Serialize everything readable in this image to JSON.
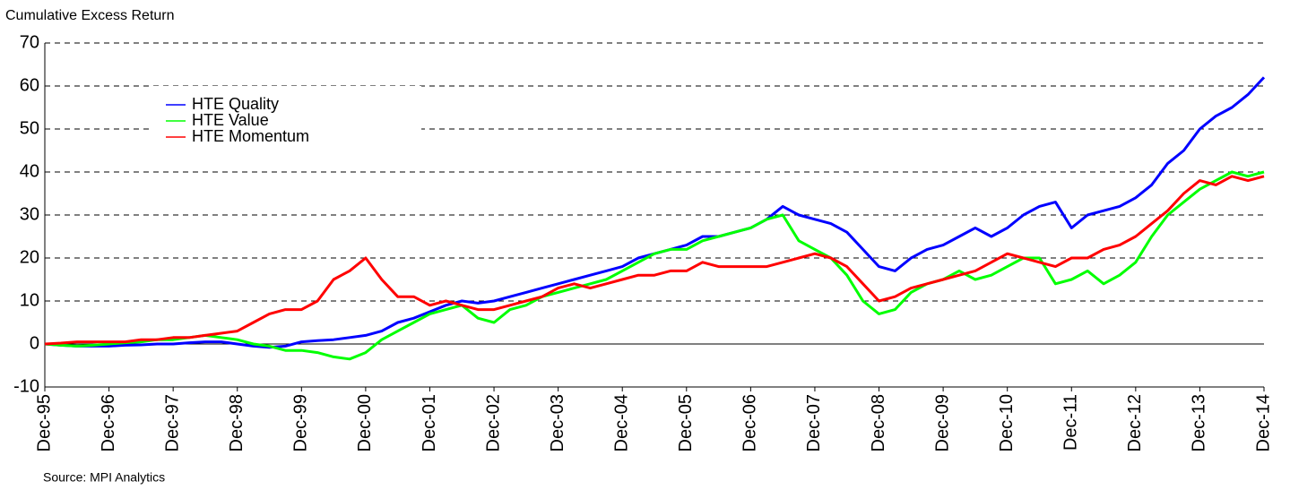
{
  "chart_data": {
    "type": "line",
    "title": "Cumulative Excess Return",
    "source": "Source: MPI Analytics",
    "categories": [
      "Dec-95",
      null,
      null,
      null,
      "Dec-96",
      null,
      null,
      null,
      "Dec-97",
      null,
      null,
      null,
      "Dec-98",
      null,
      null,
      null,
      "Dec-99",
      null,
      null,
      null,
      "Dec-00",
      null,
      null,
      null,
      "Dec-01",
      null,
      null,
      null,
      "Dec-02",
      null,
      null,
      null,
      "Dec-03",
      null,
      null,
      null,
      "Dec-04",
      null,
      null,
      null,
      "Dec-05",
      null,
      null,
      null,
      "Dec-06",
      null,
      null,
      null,
      "Dec-07",
      null,
      null,
      null,
      "Dec-08",
      null,
      null,
      null,
      "Dec-09",
      null,
      null,
      null,
      "Dec-10",
      null,
      null,
      null,
      "Dec-11",
      null,
      null,
      null,
      "Dec-12",
      null,
      null,
      null,
      "Dec-13",
      null,
      null,
      null,
      "Dec-14"
    ],
    "series": [
      {
        "name": "HTE Quality",
        "color": "#0000ff",
        "values": [
          0,
          -0.3,
          -0.5,
          -0.5,
          -0.5,
          -0.3,
          -0.2,
          0,
          0,
          0.3,
          0.5,
          0.5,
          0,
          -0.5,
          -0.8,
          -0.5,
          0.5,
          0.8,
          1,
          1.5,
          2,
          3,
          5,
          6,
          7.5,
          9,
          10,
          9.5,
          10,
          11,
          12,
          13,
          14,
          15,
          16,
          17,
          18,
          20,
          21,
          22,
          23,
          25,
          25,
          26,
          27,
          29,
          32,
          30,
          29,
          28,
          26,
          22,
          18,
          17,
          20,
          22,
          23,
          25,
          27,
          25,
          27,
          30,
          32,
          33,
          27,
          30,
          31,
          32,
          34,
          37,
          42,
          45,
          50,
          53,
          55,
          58,
          62
        ]
      },
      {
        "name": "HTE Value",
        "color": "#00ff00",
        "values": [
          0,
          -0.3,
          -0.5,
          -0.3,
          0,
          0.3,
          0.5,
          1,
          1,
          1.5,
          2,
          1.5,
          1,
          0,
          -0.5,
          -1.5,
          -1.5,
          -2,
          -3,
          -3.5,
          -2,
          1,
          3,
          5,
          7,
          8,
          9,
          6,
          5,
          8,
          9,
          11,
          12,
          13,
          14,
          15,
          17,
          19,
          21,
          22,
          22,
          24,
          25,
          26,
          27,
          29,
          30,
          24,
          22,
          20,
          16,
          10,
          7,
          8,
          12,
          14,
          15,
          17,
          15,
          16,
          18,
          20,
          20,
          14,
          15,
          17,
          14,
          16,
          19,
          25,
          30,
          33,
          36,
          38,
          40,
          39,
          40
        ]
      },
      {
        "name": "HTE Momentum",
        "color": "#ff0000",
        "values": [
          0,
          0.2,
          0.5,
          0.5,
          0.5,
          0.5,
          1,
          1,
          1.5,
          1.5,
          2,
          2.5,
          3,
          5,
          7,
          8,
          8,
          10,
          15,
          17,
          20,
          15,
          11,
          11,
          9,
          10,
          9,
          8,
          8,
          9,
          10,
          11,
          13,
          14,
          13,
          14,
          15,
          16,
          16,
          17,
          17,
          19,
          18,
          18,
          18,
          18,
          19,
          20,
          21,
          20,
          18,
          14,
          10,
          11,
          13,
          14,
          15,
          16,
          17,
          19,
          21,
          20,
          19,
          18,
          20,
          20,
          22,
          23,
          25,
          28,
          31,
          35,
          38,
          37,
          39,
          38,
          39
        ]
      }
    ],
    "ylim": [
      -10,
      70
    ],
    "yticks": [
      -10,
      0,
      10,
      20,
      30,
      40,
      50,
      60,
      70
    ],
    "grid": true
  }
}
